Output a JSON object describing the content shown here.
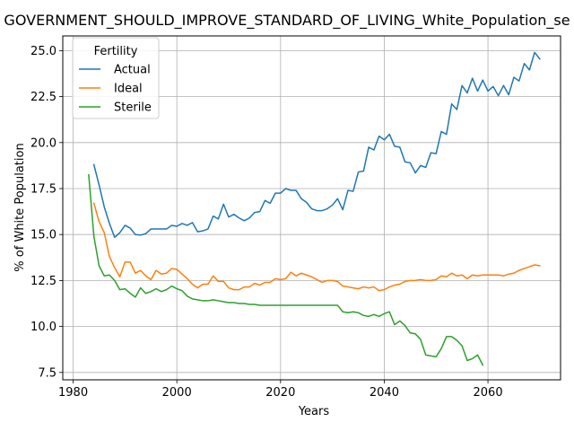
{
  "chart_data": {
    "type": "line",
    "title": "GOVERNMENT_SHOULD_IMPROVE_STANDARD_OF_LIVING_White_Population_se",
    "xlabel": "Years",
    "ylabel": "% of White Population",
    "xlim": [
      1978,
      2074
    ],
    "ylim": [
      7.1,
      25.8
    ],
    "xticks": [
      1980,
      2000,
      2020,
      2040,
      2060
    ],
    "yticks": [
      7.5,
      10.0,
      12.5,
      15.0,
      17.5,
      20.0,
      22.5,
      25.0
    ],
    "grid": true,
    "legend": {
      "title": "Fertility",
      "position": "upper-left"
    },
    "series": [
      {
        "name": "Actual",
        "color": "#1f77b4",
        "x": [
          1984,
          1985,
          1986,
          1987,
          1988,
          1989,
          1990,
          1991,
          1992,
          1993,
          1994,
          1995,
          1996,
          1997,
          1998,
          1999,
          2000,
          2001,
          2002,
          2003,
          2004,
          2005,
          2006,
          2007,
          2008,
          2009,
          2010,
          2011,
          2012,
          2013,
          2014,
          2015,
          2016,
          2017,
          2018,
          2019,
          2020,
          2021,
          2022,
          2023,
          2024,
          2025,
          2026,
          2027,
          2028,
          2029,
          2030,
          2031,
          2032,
          2033,
          2034,
          2035,
          2036,
          2037,
          2038,
          2039,
          2040,
          2041,
          2042,
          2043,
          2044,
          2045,
          2046,
          2047,
          2048,
          2049,
          2050,
          2051,
          2052,
          2053,
          2054,
          2055,
          2056,
          2057,
          2058,
          2059,
          2060,
          2061,
          2062,
          2063,
          2064,
          2065,
          2066,
          2067,
          2068,
          2069,
          2070
        ],
        "y": [
          18.8,
          17.7,
          16.5,
          15.6,
          14.85,
          15.1,
          15.5,
          15.35,
          15.0,
          14.97,
          15.05,
          15.3,
          15.3,
          15.3,
          15.3,
          15.5,
          15.45,
          15.6,
          15.5,
          15.65,
          15.15,
          15.2,
          15.3,
          16.0,
          15.85,
          16.65,
          15.95,
          16.1,
          15.9,
          15.75,
          15.9,
          16.2,
          16.25,
          16.85,
          16.7,
          17.25,
          17.25,
          17.5,
          17.4,
          17.4,
          16.95,
          16.75,
          16.4,
          16.3,
          16.3,
          16.4,
          16.6,
          16.95,
          16.35,
          17.4,
          17.35,
          18.4,
          18.45,
          19.75,
          19.6,
          20.35,
          20.15,
          20.45,
          19.8,
          19.75,
          18.95,
          18.9,
          18.35,
          18.75,
          18.65,
          19.45,
          19.4,
          20.6,
          20.45,
          22.1,
          21.8,
          23.1,
          22.7,
          23.5,
          22.8,
          23.4,
          22.8,
          23.05,
          22.55,
          23.1,
          22.6,
          23.55,
          23.35,
          24.3,
          23.95,
          24.9,
          24.55
        ]
      },
      {
        "name": "Ideal",
        "color": "#ff7f0e",
        "x": [
          1984,
          1985,
          1986,
          1987,
          1988,
          1989,
          1990,
          1991,
          1992,
          1993,
          1994,
          1995,
          1996,
          1997,
          1998,
          1999,
          2000,
          2001,
          2002,
          2003,
          2004,
          2005,
          2006,
          2007,
          2008,
          2009,
          2010,
          2011,
          2012,
          2013,
          2014,
          2015,
          2016,
          2017,
          2018,
          2019,
          2020,
          2021,
          2022,
          2023,
          2024,
          2025,
          2026,
          2027,
          2028,
          2029,
          2030,
          2031,
          2032,
          2033,
          2034,
          2035,
          2036,
          2037,
          2038,
          2039,
          2040,
          2041,
          2042,
          2043,
          2044,
          2045,
          2046,
          2047,
          2048,
          2049,
          2050,
          2051,
          2052,
          2053,
          2054,
          2055,
          2056,
          2057,
          2058,
          2059,
          2060,
          2061,
          2062,
          2063,
          2064,
          2065,
          2066,
          2067,
          2068,
          2069,
          2070
        ],
        "y": [
          16.7,
          15.7,
          15.1,
          13.8,
          13.2,
          12.7,
          13.5,
          13.5,
          12.9,
          13.05,
          12.75,
          12.55,
          13.05,
          12.85,
          12.9,
          13.15,
          13.1,
          12.85,
          12.6,
          12.3,
          12.1,
          12.3,
          12.3,
          12.75,
          12.45,
          12.45,
          12.1,
          12.0,
          12.0,
          12.15,
          12.15,
          12.35,
          12.25,
          12.4,
          12.4,
          12.6,
          12.55,
          12.6,
          12.95,
          12.75,
          12.9,
          12.8,
          12.7,
          12.55,
          12.4,
          12.5,
          12.5,
          12.45,
          12.2,
          12.15,
          12.1,
          12.05,
          12.15,
          12.1,
          12.15,
          11.95,
          12.0,
          12.15,
          12.25,
          12.3,
          12.45,
          12.5,
          12.5,
          12.55,
          12.5,
          12.5,
          12.55,
          12.75,
          12.7,
          12.9,
          12.75,
          12.8,
          12.6,
          12.8,
          12.75,
          12.8,
          12.8,
          12.8,
          12.8,
          12.75,
          12.85,
          12.9,
          13.05,
          13.15,
          13.25,
          13.35,
          13.3
        ]
      },
      {
        "name": "Sterile",
        "color": "#2ca02c",
        "x": [
          1983,
          1984,
          1985,
          1986,
          1987,
          1988,
          1989,
          1990,
          1991,
          1992,
          1993,
          1994,
          1995,
          1996,
          1997,
          1998,
          1999,
          2000,
          2001,
          2002,
          2003,
          2004,
          2005,
          2006,
          2007,
          2008,
          2009,
          2010,
          2011,
          2012,
          2013,
          2014,
          2015,
          2016,
          2017,
          2018,
          2019,
          2020,
          2021,
          2022,
          2023,
          2024,
          2025,
          2026,
          2027,
          2028,
          2029,
          2030,
          2031,
          2032,
          2033,
          2034,
          2035,
          2036,
          2037,
          2038,
          2039,
          2040,
          2041,
          2042,
          2043,
          2044,
          2045,
          2046,
          2047,
          2048,
          2049,
          2050,
          2051,
          2052,
          2053,
          2054,
          2055,
          2056,
          2057,
          2058,
          2059
        ],
        "y": [
          18.25,
          14.9,
          13.3,
          12.75,
          12.8,
          12.5,
          12.0,
          12.05,
          11.8,
          11.6,
          12.1,
          11.8,
          11.9,
          12.05,
          11.9,
          12.0,
          12.2,
          12.05,
          11.95,
          11.65,
          11.5,
          11.45,
          11.4,
          11.4,
          11.45,
          11.4,
          11.35,
          11.3,
          11.3,
          11.25,
          11.25,
          11.2,
          11.2,
          11.15,
          11.15,
          11.15,
          11.15,
          11.15,
          11.15,
          11.15,
          11.15,
          11.15,
          11.15,
          11.15,
          11.15,
          11.15,
          11.15,
          11.15,
          11.15,
          10.8,
          10.75,
          10.8,
          10.75,
          10.6,
          10.55,
          10.65,
          10.55,
          10.7,
          10.8,
          10.1,
          10.3,
          10.05,
          9.65,
          9.6,
          9.3,
          8.45,
          8.4,
          8.35,
          8.8,
          9.45,
          9.45,
          9.25,
          8.95,
          8.15,
          8.25,
          8.45,
          7.9
        ]
      }
    ]
  }
}
